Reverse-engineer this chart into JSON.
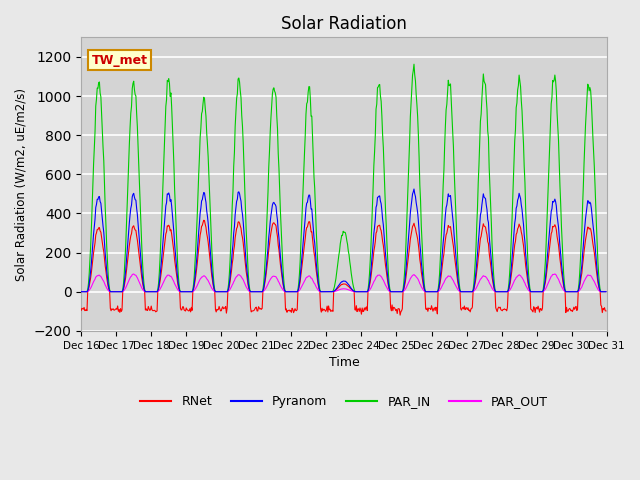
{
  "title": "Solar Radiation",
  "ylabel": "Solar Radiation (W/m2, uE/m2/s)",
  "xlabel": "Time",
  "station_label": "TW_met",
  "ylim": [
    -200,
    1300
  ],
  "yticks": [
    -200,
    0,
    200,
    400,
    600,
    800,
    1000,
    1200
  ],
  "x_tick_labels": [
    "Dec 16",
    "Dec 17",
    "Dec 18",
    "Dec 19",
    "Dec 20",
    "Dec 21",
    "Dec 22",
    "Dec 23",
    "Dec 24",
    "Dec 25",
    "Dec 26",
    "Dec 27",
    "Dec 28",
    "Dec 29",
    "Dec 30",
    "Dec 31"
  ],
  "line_colors": {
    "RNet": "#ff0000",
    "Pyranom": "#0000ff",
    "PAR_IN": "#00cc00",
    "PAR_OUT": "#ff00ff"
  },
  "legend_entries": [
    "RNet",
    "Pyranom",
    "PAR_IN",
    "PAR_OUT"
  ],
  "fig_bg_color": "#e8e8e8",
  "plot_bg_color": "#d4d4d4",
  "grid_color": "#ffffff",
  "n_days": 15,
  "points_per_day": 48,
  "par_peaks": [
    1080,
    1070,
    1090,
    980,
    1070,
    1050,
    1040,
    310,
    1060,
    1130,
    1070,
    1090,
    1090,
    1100,
    1060
  ],
  "pyranom_peaks": [
    490,
    500,
    505,
    500,
    500,
    460,
    490,
    55,
    490,
    510,
    495,
    490,
    495,
    470,
    465
  ],
  "rnet_peaks": [
    330,
    335,
    340,
    360,
    350,
    355,
    355,
    40,
    340,
    340,
    335,
    340,
    340,
    340,
    330
  ],
  "par_out_peaks": [
    85,
    90,
    85,
    80,
    85,
    80,
    80,
    15,
    85,
    85,
    80,
    80,
    85,
    90,
    85
  ]
}
